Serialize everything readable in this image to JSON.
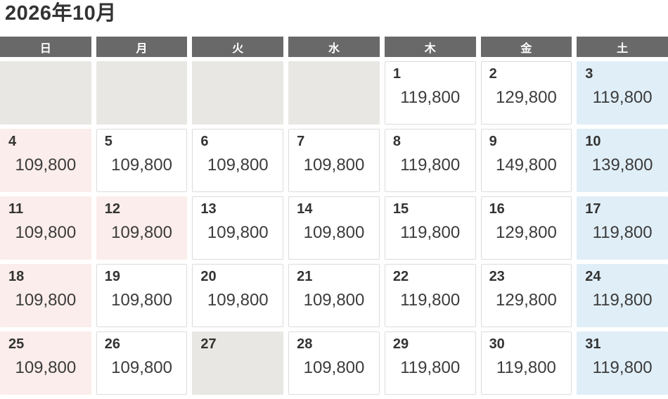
{
  "title": "2026年10月",
  "colors": {
    "header_bg": "#696969",
    "header_text": "#ffffff",
    "sunday_bg": "#fbedeb",
    "saturday_bg": "#e0eef7",
    "empty_bg": "#e8e7e3",
    "cell_border": "#dcdcdc",
    "day_text": "#333333",
    "price_text": "#3c3c3c"
  },
  "weekday_headers": [
    "日",
    "月",
    "火",
    "水",
    "木",
    "金",
    "土"
  ],
  "weeks": [
    [
      {
        "type": "empty"
      },
      {
        "type": "empty"
      },
      {
        "type": "empty"
      },
      {
        "type": "empty"
      },
      {
        "day": "1",
        "price": "119,800",
        "type": "weekday"
      },
      {
        "day": "2",
        "price": "129,800",
        "type": "weekday"
      },
      {
        "day": "3",
        "price": "119,800",
        "type": "saturday"
      }
    ],
    [
      {
        "day": "4",
        "price": "109,800",
        "type": "sunday"
      },
      {
        "day": "5",
        "price": "109,800",
        "type": "weekday"
      },
      {
        "day": "6",
        "price": "109,800",
        "type": "weekday"
      },
      {
        "day": "7",
        "price": "109,800",
        "type": "weekday"
      },
      {
        "day": "8",
        "price": "119,800",
        "type": "weekday"
      },
      {
        "day": "9",
        "price": "149,800",
        "type": "weekday"
      },
      {
        "day": "10",
        "price": "139,800",
        "type": "saturday"
      }
    ],
    [
      {
        "day": "11",
        "price": "109,800",
        "type": "sunday"
      },
      {
        "day": "12",
        "price": "109,800",
        "type": "holiday"
      },
      {
        "day": "13",
        "price": "109,800",
        "type": "weekday"
      },
      {
        "day": "14",
        "price": "109,800",
        "type": "weekday"
      },
      {
        "day": "15",
        "price": "119,800",
        "type": "weekday"
      },
      {
        "day": "16",
        "price": "129,800",
        "type": "weekday"
      },
      {
        "day": "17",
        "price": "119,800",
        "type": "saturday"
      }
    ],
    [
      {
        "day": "18",
        "price": "109,800",
        "type": "sunday"
      },
      {
        "day": "19",
        "price": "109,800",
        "type": "weekday"
      },
      {
        "day": "20",
        "price": "109,800",
        "type": "weekday"
      },
      {
        "day": "21",
        "price": "109,800",
        "type": "weekday"
      },
      {
        "day": "22",
        "price": "119,800",
        "type": "weekday"
      },
      {
        "day": "23",
        "price": "129,800",
        "type": "weekday"
      },
      {
        "day": "24",
        "price": "119,800",
        "type": "saturday"
      }
    ],
    [
      {
        "day": "25",
        "price": "109,800",
        "type": "sunday"
      },
      {
        "day": "26",
        "price": "109,800",
        "type": "weekday"
      },
      {
        "day": "27",
        "price": "",
        "type": "unavailable"
      },
      {
        "day": "28",
        "price": "109,800",
        "type": "weekday"
      },
      {
        "day": "29",
        "price": "119,800",
        "type": "weekday"
      },
      {
        "day": "30",
        "price": "119,800",
        "type": "weekday"
      },
      {
        "day": "31",
        "price": "119,800",
        "type": "saturday"
      }
    ]
  ]
}
